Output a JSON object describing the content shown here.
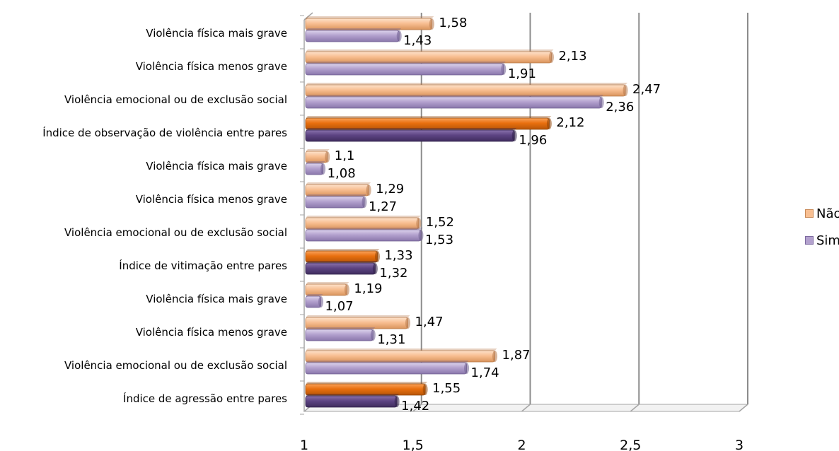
{
  "chart_data": {
    "type": "bar",
    "orientation": "horizontal",
    "categories": [
      "Violência física mais grave",
      "Violência física menos grave",
      "Violência emocional ou de exclusão social",
      "Índice de observação de violência entre pares",
      "Violência física mais grave",
      "Violência física menos grave",
      "Violência emocional ou de exclusão social",
      "Índice de vitimação entre pares",
      "Violência física mais grave",
      "Violência física menos grave",
      "Violência emocional ou de exclusão social",
      "Índice de agressão entre pares"
    ],
    "series": [
      {
        "name": "Não",
        "values": [
          1.58,
          2.13,
          2.47,
          2.12,
          1.1,
          1.29,
          1.52,
          1.33,
          1.19,
          1.47,
          1.87,
          1.55
        ],
        "labels": [
          "1,58",
          "2,13",
          "2,47",
          "2,12",
          "1,1",
          "1,29",
          "1,52",
          "1,33",
          "1,19",
          "1,47",
          "1,87",
          "1,55"
        ],
        "color": "#f8bf92",
        "highlight_color": "#e9700f"
      },
      {
        "name": "Sim",
        "values": [
          1.43,
          1.91,
          2.36,
          1.96,
          1.08,
          1.27,
          1.53,
          1.32,
          1.07,
          1.31,
          1.74,
          1.42
        ],
        "labels": [
          "1,43",
          "1,91",
          "2,36",
          "1,96",
          "1,08",
          "1,27",
          "1,53",
          "1,32",
          "1,07",
          "1,31",
          "1,74",
          "1,42"
        ],
        "color": "#b3a1ce",
        "highlight_color": "#5d4483"
      }
    ],
    "highlighted_categories": [
      3,
      7,
      11
    ],
    "xlim": [
      1,
      3
    ],
    "x_ticks": [
      "1",
      "1,5",
      "2",
      "2,5",
      "3"
    ],
    "x_tick_values": [
      1,
      1.5,
      2,
      2.5,
      3
    ],
    "grid": "vertical",
    "legend_position": "right",
    "title": "",
    "xlabel": "",
    "ylabel": ""
  }
}
